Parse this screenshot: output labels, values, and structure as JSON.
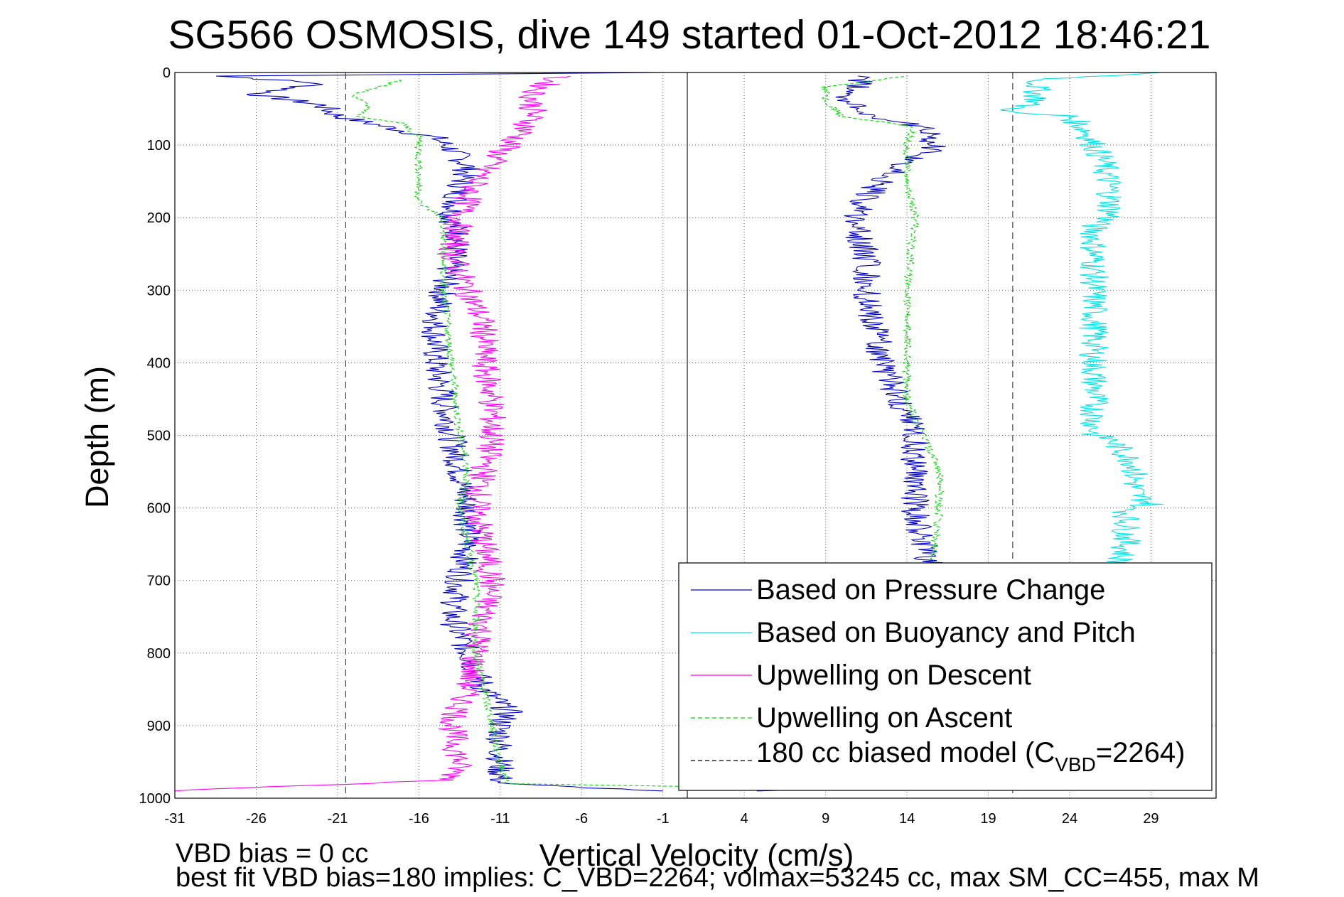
{
  "chart_data": {
    "type": "line",
    "title": "SG566 OSMOSIS, dive 149 started 01-Oct-2012 18:46:21",
    "xlabel": "Vertical Velocity (cm/s)",
    "ylabel": "Depth (m)",
    "xlim": [
      -31,
      33
    ],
    "ylim": [
      0,
      1000
    ],
    "y_reversed": true,
    "grid": true,
    "x_ticks": [
      -31,
      -26,
      -21,
      -16,
      -11,
      -6,
      -1,
      4,
      9,
      14,
      19,
      24,
      29
    ],
    "y_ticks": [
      0,
      100,
      200,
      300,
      400,
      500,
      600,
      700,
      800,
      900,
      1000
    ],
    "reference_lines_x": [
      -20.5,
      0.5,
      20.5
    ],
    "legend_position": "lower-right",
    "series": [
      {
        "name": "Based on Pressure Change",
        "color": "#0000cc",
        "style": "solid",
        "segments": [
          [
            [
              -1,
              0
            ],
            [
              -28,
              5
            ],
            [
              -22,
              15
            ],
            [
              -26,
              30
            ],
            [
              -22,
              45
            ],
            [
              -21,
              60
            ],
            [
              -18,
              75
            ],
            [
              -15,
              90
            ],
            [
              -14,
              105
            ],
            [
              -13,
              130
            ],
            [
              -13.5,
              160
            ],
            [
              -14,
              200
            ],
            [
              -13.5,
              230
            ],
            [
              -14,
              260
            ],
            [
              -14.5,
              300
            ],
            [
              -15,
              350
            ],
            [
              -15,
              400
            ],
            [
              -14.5,
              450
            ],
            [
              -14,
              500
            ],
            [
              -13.5,
              550
            ],
            [
              -13,
              600
            ],
            [
              -13,
              650
            ],
            [
              -13.5,
              700
            ],
            [
              -14,
              750
            ],
            [
              -13,
              800
            ],
            [
              -12,
              850
            ],
            [
              -10.5,
              880
            ],
            [
              -11,
              900
            ],
            [
              -11,
              950
            ],
            [
              -11,
              980
            ],
            [
              -1,
              990
            ]
          ],
          [
            [
              4,
              990
            ],
            [
              14,
              985
            ],
            [
              15.5,
              930
            ],
            [
              15.5,
              870
            ],
            [
              15.5,
              800
            ],
            [
              15.5,
              680
            ],
            [
              15,
              650
            ],
            [
              14.5,
              600
            ],
            [
              14.5,
              550
            ],
            [
              14.5,
              500
            ],
            [
              13.5,
              450
            ],
            [
              12.5,
              400
            ],
            [
              12,
              350
            ],
            [
              11.5,
              300
            ],
            [
              11.5,
              250
            ],
            [
              11,
              220
            ],
            [
              11,
              190
            ],
            [
              12,
              160
            ],
            [
              13.5,
              130
            ],
            [
              15.5,
              105
            ],
            [
              15.5,
              80
            ],
            [
              12,
              60
            ],
            [
              10,
              40
            ],
            [
              11,
              20
            ],
            [
              11,
              5
            ]
          ]
        ]
      },
      {
        "name": "Based on Buoyancy and Pitch",
        "color": "#00e5e5",
        "style": "solid",
        "segments": [
          [
            [
              30,
              0
            ],
            [
              22,
              10
            ],
            [
              22,
              40
            ],
            [
              20,
              55
            ],
            [
              24,
              60
            ],
            [
              25,
              80
            ],
            [
              26,
              120
            ],
            [
              26.5,
              160
            ],
            [
              26.5,
              200
            ],
            [
              25.5,
              210
            ],
            [
              25.5,
              300
            ],
            [
              25.5,
              400
            ],
            [
              25.5,
              500
            ],
            [
              26.5,
              505
            ],
            [
              28,
              540
            ],
            [
              28,
              580
            ],
            [
              29,
              595
            ],
            [
              27.5,
              600
            ],
            [
              27.5,
              650
            ],
            [
              27,
              680
            ]
          ],
          [
            [
              32.5,
              920
            ],
            [
              30,
              925
            ]
          ]
        ]
      },
      {
        "name": "Upwelling on Descent",
        "color": "#ff00ff",
        "style": "solid",
        "segments": [
          [
            [
              -7.5,
              5
            ],
            [
              -9,
              30
            ],
            [
              -9,
              55
            ],
            [
              -9.5,
              80
            ],
            [
              -11,
              110
            ],
            [
              -12.5,
              150
            ],
            [
              -13.5,
              200
            ],
            [
              -14,
              250
            ],
            [
              -13,
              300
            ],
            [
              -12,
              350
            ],
            [
              -12,
              400
            ],
            [
              -11.5,
              450
            ],
            [
              -11.5,
              500
            ],
            [
              -12,
              550
            ],
            [
              -12.5,
              600
            ],
            [
              -12,
              650
            ],
            [
              -11.5,
              700
            ],
            [
              -12,
              750
            ],
            [
              -12.5,
              800
            ],
            [
              -13,
              850
            ],
            [
              -14,
              900
            ],
            [
              -13.5,
              950
            ],
            [
              -14,
              975
            ],
            [
              -31,
              990
            ]
          ]
        ]
      },
      {
        "name": "Upwelling on Ascent",
        "color": "#00dd00",
        "style": "dashed",
        "segments": [
          [
            [
              -17,
              10
            ],
            [
              -20,
              30
            ],
            [
              -19,
              50
            ],
            [
              -20,
              60
            ],
            [
              -17,
              70
            ],
            [
              -16,
              90
            ],
            [
              -16,
              130
            ],
            [
              -16,
              180
            ],
            [
              -14.5,
              200
            ],
            [
              -14.5,
              300
            ],
            [
              -14,
              400
            ],
            [
              -13.5,
              500
            ],
            [
              -13,
              550
            ],
            [
              -13.5,
              600
            ],
            [
              -13,
              650
            ],
            [
              -12.5,
              700
            ],
            [
              -12.5,
              800
            ],
            [
              -11.5,
              900
            ],
            [
              -11,
              950
            ],
            [
              -10.5,
              980
            ],
            [
              4,
              985
            ]
          ],
          [
            [
              14,
              985
            ],
            [
              14,
              930
            ],
            [
              14,
              850
            ],
            [
              15,
              750
            ],
            [
              15.5,
              700
            ],
            [
              16,
              600
            ],
            [
              16,
              550
            ],
            [
              15,
              500
            ],
            [
              14,
              450
            ],
            [
              14,
              400
            ],
            [
              14,
              300
            ],
            [
              14.5,
              200
            ],
            [
              14,
              150
            ],
            [
              14,
              100
            ],
            [
              14.5,
              75
            ],
            [
              10,
              60
            ],
            [
              9,
              40
            ],
            [
              9,
              20
            ],
            [
              14,
              5
            ]
          ]
        ]
      },
      {
        "name": "180 cc biased model (C_VBD=2264)",
        "color": "#000000",
        "style": "dashed",
        "segments": []
      }
    ],
    "annotations": [
      "VBD bias = 0 cc",
      "best fit VBD bias=180 implies: C_VBD=2264; volmax=53245 cc, max SM_CC=455, max M"
    ]
  },
  "legend": {
    "entries": [
      {
        "label": "Based on Pressure Change",
        "color": "#0000cc",
        "style": "solid"
      },
      {
        "label": "Based on Buoyancy and Pitch",
        "color": "#00e5e5",
        "style": "solid"
      },
      {
        "label": "Upwelling on Descent",
        "color": "#ff00ff",
        "style": "solid"
      },
      {
        "label": "Upwelling on Ascent",
        "color": "#00dd00",
        "style": "dashed"
      }
    ],
    "last_entry": {
      "main": "180 cc biased model (C",
      "sub": "VBD",
      "tail": "=2264)",
      "color": "#000000",
      "style": "dashed"
    }
  }
}
